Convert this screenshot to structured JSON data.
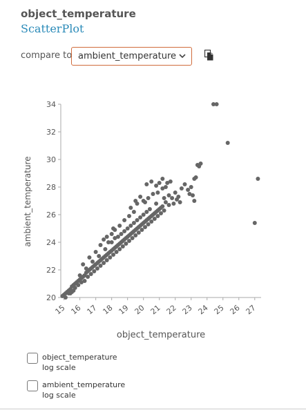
{
  "header": {
    "title": "object_temperature",
    "subtitle": "ScatterPlot"
  },
  "compare": {
    "label": "compare to",
    "selected": "ambient_temperature"
  },
  "icons": {
    "dropdown": "chevron-down-icon",
    "copy": "copy-icon"
  },
  "colors": {
    "points": "#666666",
    "subtitle": "#2a8ab8",
    "select_border": "#d06a3a"
  },
  "chart_data": {
    "type": "scatter",
    "xlabel": "object_temperature",
    "ylabel": "ambient_temperature",
    "xlim": [
      14.8,
      27.4
    ],
    "ylim": [
      20,
      34
    ],
    "xticks": [
      15,
      16,
      17,
      18,
      19,
      20,
      21,
      22,
      23,
      24,
      25,
      26,
      27
    ],
    "yticks": [
      20,
      22,
      24,
      26,
      28,
      30,
      32,
      34
    ],
    "points": [
      [
        14.9,
        20.1
      ],
      [
        15.0,
        20.2
      ],
      [
        15.1,
        20.3
      ],
      [
        15.2,
        20.4
      ],
      [
        15.3,
        20.5
      ],
      [
        15.4,
        20.6
      ],
      [
        15.5,
        20.8
      ],
      [
        15.6,
        20.9
      ],
      [
        15.7,
        21.0
      ],
      [
        15.8,
        21.1
      ],
      [
        15.9,
        21.2
      ],
      [
        16.0,
        21.3
      ],
      [
        16.1,
        21.4
      ],
      [
        16.2,
        21.5
      ],
      [
        16.3,
        21.6
      ],
      [
        16.4,
        21.8
      ],
      [
        16.5,
        21.9
      ],
      [
        16.6,
        22.0
      ],
      [
        16.7,
        22.1
      ],
      [
        16.8,
        22.2
      ],
      [
        16.9,
        22.3
      ],
      [
        17.0,
        22.4
      ],
      [
        17.1,
        22.5
      ],
      [
        17.2,
        22.6
      ],
      [
        17.3,
        22.7
      ],
      [
        17.4,
        22.8
      ],
      [
        17.5,
        22.9
      ],
      [
        17.6,
        23.0
      ],
      [
        17.7,
        23.1
      ],
      [
        17.8,
        23.2
      ],
      [
        17.9,
        23.3
      ],
      [
        18.0,
        23.4
      ],
      [
        18.1,
        23.5
      ],
      [
        18.2,
        23.6
      ],
      [
        18.3,
        23.7
      ],
      [
        18.4,
        23.8
      ],
      [
        18.5,
        23.9
      ],
      [
        18.6,
        24.0
      ],
      [
        18.7,
        24.1
      ],
      [
        18.8,
        24.2
      ],
      [
        18.9,
        24.3
      ],
      [
        19.0,
        24.4
      ],
      [
        19.1,
        24.5
      ],
      [
        19.2,
        24.6
      ],
      [
        19.3,
        24.7
      ],
      [
        19.4,
        24.8
      ],
      [
        19.5,
        24.9
      ],
      [
        19.6,
        25.0
      ],
      [
        19.7,
        25.1
      ],
      [
        19.8,
        25.2
      ],
      [
        19.9,
        25.3
      ],
      [
        20.0,
        25.4
      ],
      [
        20.1,
        25.5
      ],
      [
        20.2,
        25.6
      ],
      [
        20.3,
        25.7
      ],
      [
        20.4,
        25.8
      ],
      [
        20.5,
        25.9
      ],
      [
        20.6,
        26.0
      ],
      [
        20.7,
        26.1
      ],
      [
        20.8,
        26.2
      ],
      [
        20.9,
        26.3
      ],
      [
        21.0,
        26.4
      ],
      [
        21.1,
        26.5
      ],
      [
        21.2,
        26.6
      ],
      [
        15.1,
        20.0
      ],
      [
        15.3,
        20.3
      ],
      [
        15.5,
        20.4
      ],
      [
        15.7,
        20.7
      ],
      [
        15.9,
        20.9
      ],
      [
        16.1,
        21.1
      ],
      [
        16.3,
        21.2
      ],
      [
        16.5,
        21.5
      ],
      [
        16.7,
        21.7
      ],
      [
        16.9,
        21.9
      ],
      [
        17.1,
        22.1
      ],
      [
        17.3,
        22.3
      ],
      [
        17.5,
        22.5
      ],
      [
        17.7,
        22.7
      ],
      [
        17.9,
        22.9
      ],
      [
        18.1,
        23.1
      ],
      [
        18.3,
        23.3
      ],
      [
        18.5,
        23.5
      ],
      [
        18.7,
        23.7
      ],
      [
        18.9,
        23.9
      ],
      [
        19.1,
        24.1
      ],
      [
        19.3,
        24.3
      ],
      [
        19.5,
        24.5
      ],
      [
        19.7,
        24.7
      ],
      [
        19.9,
        24.9
      ],
      [
        20.1,
        25.1
      ],
      [
        20.3,
        25.3
      ],
      [
        20.5,
        25.5
      ],
      [
        20.7,
        25.7
      ],
      [
        20.9,
        25.9
      ],
      [
        21.1,
        26.1
      ],
      [
        21.3,
        26.3
      ],
      [
        16.0,
        21.6
      ],
      [
        16.4,
        22.1
      ],
      [
        16.8,
        22.6
      ],
      [
        17.2,
        23.0
      ],
      [
        17.6,
        23.5
      ],
      [
        18.0,
        24.0
      ],
      [
        18.4,
        24.4
      ],
      [
        18.8,
        24.8
      ],
      [
        19.2,
        25.2
      ],
      [
        19.6,
        25.6
      ],
      [
        20.0,
        26.0
      ],
      [
        20.4,
        26.4
      ],
      [
        20.8,
        26.8
      ],
      [
        17.0,
        23.3
      ],
      [
        17.8,
        24.0
      ],
      [
        18.6,
        24.6
      ],
      [
        19.4,
        25.4
      ],
      [
        20.2,
        26.2
      ],
      [
        19.0,
        25.0
      ],
      [
        19.8,
        25.8
      ],
      [
        18.2,
        24.3
      ],
      [
        18.0,
        24.6
      ],
      [
        18.2,
        24.9
      ],
      [
        18.5,
        25.2
      ],
      [
        18.8,
        25.6
      ],
      [
        19.1,
        25.9
      ],
      [
        19.4,
        26.2
      ],
      [
        19.2,
        26.5
      ],
      [
        19.6,
        26.8
      ],
      [
        20.0,
        27.0
      ],
      [
        19.8,
        27.3
      ],
      [
        20.3,
        27.2
      ],
      [
        20.6,
        27.5
      ],
      [
        20.9,
        27.6
      ],
      [
        21.2,
        27.9
      ],
      [
        20.2,
        28.2
      ],
      [
        20.5,
        28.4
      ],
      [
        20.8,
        28.1
      ],
      [
        21.0,
        28.3
      ],
      [
        21.2,
        28.6
      ],
      [
        21.4,
        28.0
      ],
      [
        21.6,
        27.4
      ],
      [
        21.8,
        27.2
      ],
      [
        22.0,
        27.6
      ],
      [
        22.2,
        27.3
      ],
      [
        22.4,
        27.9
      ],
      [
        22.6,
        28.2
      ],
      [
        22.8,
        27.8
      ],
      [
        23.0,
        28.0
      ],
      [
        23.1,
        27.4
      ],
      [
        23.2,
        28.6
      ],
      [
        23.3,
        28.7
      ],
      [
        23.4,
        29.6
      ],
      [
        23.5,
        29.5
      ],
      [
        23.6,
        29.7
      ],
      [
        23.2,
        27.0
      ],
      [
        22.9,
        27.5
      ],
      [
        21.5,
        28.3
      ],
      [
        21.7,
        28.4
      ],
      [
        22.3,
        26.9
      ],
      [
        21.9,
        26.8
      ],
      [
        22.1,
        27.1
      ],
      [
        17.7,
        24.4
      ],
      [
        18.1,
        25.0
      ],
      [
        17.5,
        24.2
      ],
      [
        17.3,
        23.8
      ],
      [
        16.6,
        22.9
      ],
      [
        16.2,
        22.4
      ],
      [
        19.5,
        27.0
      ],
      [
        20.1,
        26.9
      ],
      [
        21.4,
        26.9
      ],
      [
        21.6,
        26.7
      ],
      [
        21.3,
        27.2
      ],
      [
        15.4,
        20.3
      ],
      [
        15.6,
        20.5
      ],
      [
        24.4,
        34.0
      ],
      [
        24.6,
        34.0
      ],
      [
        25.3,
        31.2
      ],
      [
        27.2,
        28.6
      ],
      [
        27.0,
        25.4
      ]
    ]
  },
  "options": [
    {
      "name": "object_temperature",
      "label": "log scale"
    },
    {
      "name": "ambient_temperature",
      "label": "log scale"
    }
  ]
}
